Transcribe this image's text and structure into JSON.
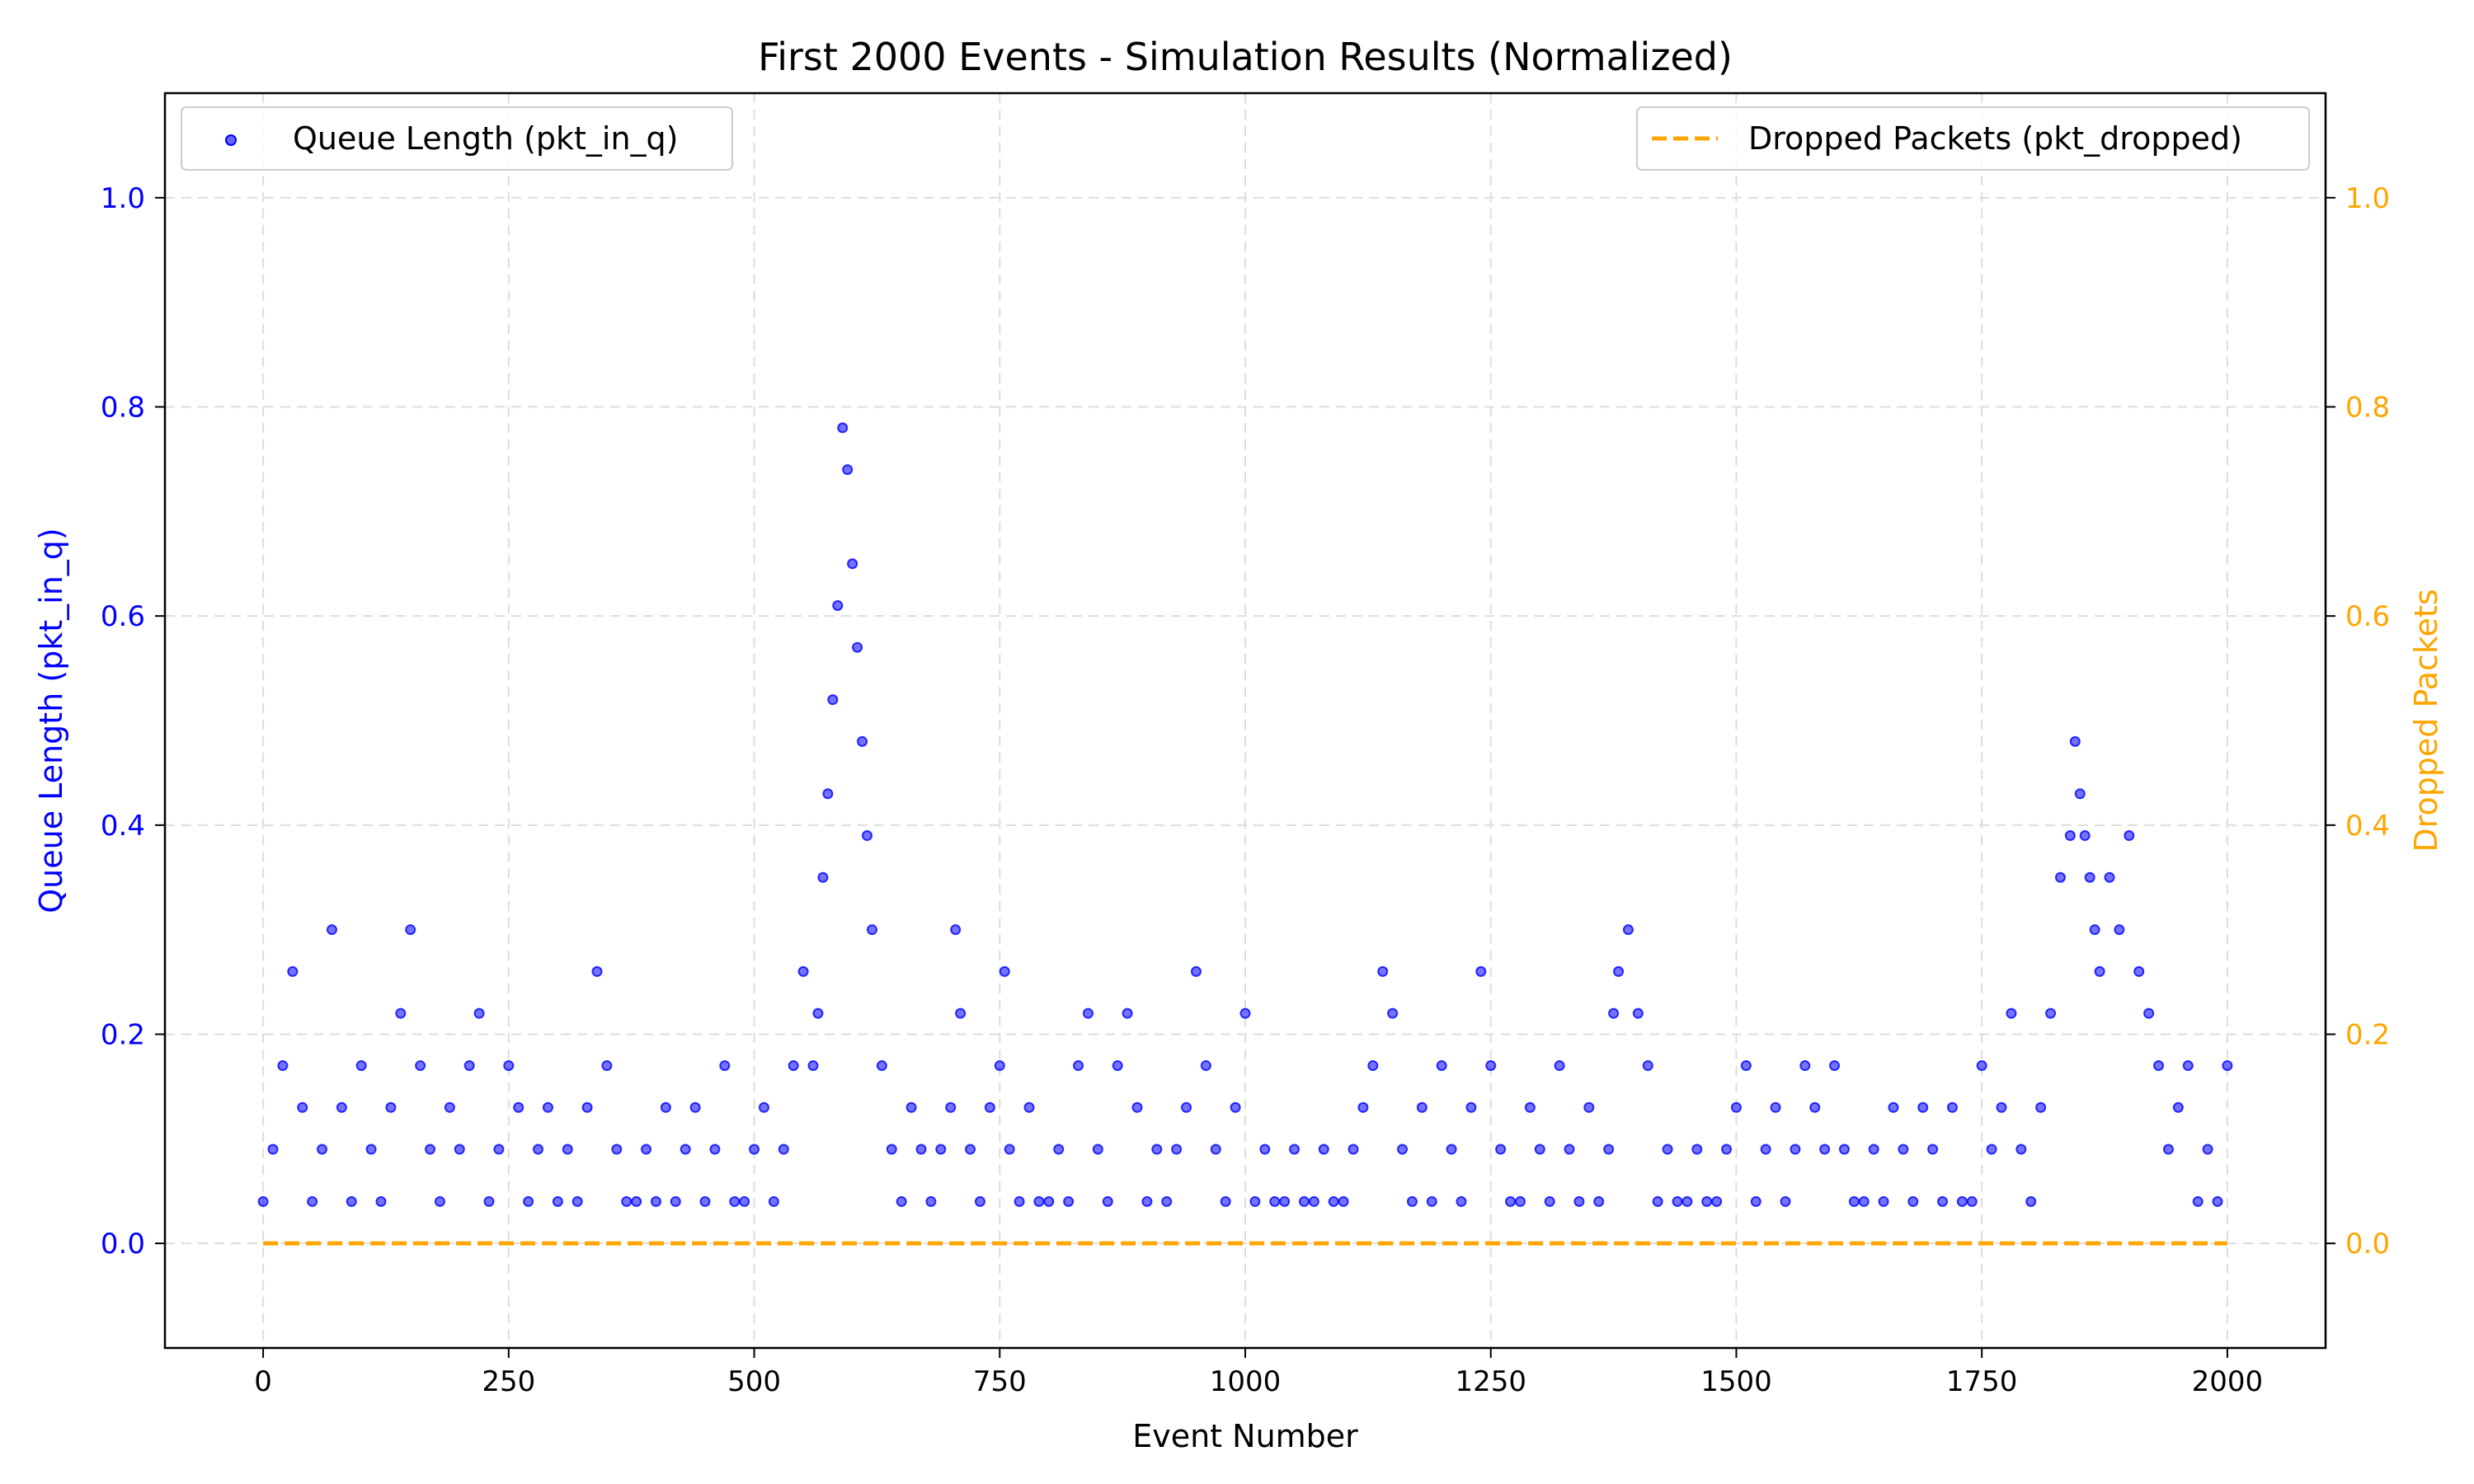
{
  "chart_data": {
    "type": "scatter",
    "title": "First 2000 Events - Simulation Results (Normalized)",
    "xlabel": "Event Number",
    "ylabel": "Queue Length (pkt_in_q)",
    "y2label": "Dropped Packets",
    "xlim": [
      -100,
      2100
    ],
    "ylim": [
      -0.1,
      1.1
    ],
    "y2lim": [
      -0.1,
      1.1
    ],
    "x_ticks": [
      0,
      250,
      500,
      750,
      1000,
      1250,
      1500,
      1750,
      2000
    ],
    "y_ticks": [
      0.0,
      0.2,
      0.4,
      0.6,
      0.8,
      1.0
    ],
    "x_tick_labels": [
      "0",
      "250",
      "500",
      "750",
      "1000",
      "1250",
      "1500",
      "1750",
      "2000"
    ],
    "y_tick_labels": [
      "0.0",
      "0.2",
      "0.4",
      "0.6",
      "0.8",
      "1.0"
    ],
    "y2_tick_labels": [
      "0.0",
      "0.2",
      "0.4",
      "0.6",
      "0.8",
      "1.0"
    ],
    "grid": true,
    "series": [
      {
        "name": "Queue Length (pkt_in_q)",
        "kind": "scatter",
        "axis": "left",
        "color": "#0000ff",
        "x": [
          0,
          10,
          20,
          30,
          40,
          50,
          60,
          70,
          80,
          90,
          100,
          110,
          120,
          130,
          140,
          150,
          160,
          170,
          180,
          190,
          200,
          210,
          220,
          230,
          240,
          250,
          260,
          270,
          280,
          290,
          300,
          310,
          320,
          330,
          340,
          350,
          360,
          370,
          380,
          390,
          400,
          410,
          420,
          430,
          440,
          450,
          460,
          470,
          480,
          490,
          500,
          510,
          520,
          530,
          540,
          550,
          560,
          565,
          570,
          575,
          580,
          585,
          590,
          595,
          600,
          605,
          610,
          615,
          620,
          630,
          640,
          650,
          660,
          670,
          680,
          690,
          700,
          705,
          710,
          720,
          730,
          740,
          750,
          755,
          760,
          770,
          780,
          790,
          800,
          810,
          820,
          830,
          840,
          850,
          860,
          870,
          880,
          890,
          900,
          910,
          920,
          930,
          940,
          950,
          960,
          970,
          980,
          990,
          1000,
          1010,
          1020,
          1030,
          1040,
          1050,
          1060,
          1070,
          1080,
          1090,
          1100,
          1110,
          1120,
          1130,
          1140,
          1150,
          1160,
          1170,
          1180,
          1190,
          1200,
          1210,
          1220,
          1230,
          1240,
          1250,
          1260,
          1270,
          1280,
          1290,
          1300,
          1310,
          1320,
          1330,
          1340,
          1350,
          1360,
          1370,
          1375,
          1380,
          1390,
          1400,
          1410,
          1420,
          1430,
          1440,
          1450,
          1460,
          1470,
          1480,
          1490,
          1500,
          1510,
          1520,
          1530,
          1540,
          1550,
          1560,
          1570,
          1580,
          1590,
          1600,
          1610,
          1620,
          1630,
          1640,
          1650,
          1660,
          1670,
          1680,
          1690,
          1700,
          1710,
          1720,
          1730,
          1740,
          1750,
          1760,
          1770,
          1780,
          1790,
          1800,
          1810,
          1820,
          1830,
          1840,
          1845,
          1850,
          1855,
          1860,
          1865,
          1870,
          1880,
          1890,
          1900,
          1910,
          1920,
          1930,
          1940,
          1950,
          1960,
          1970,
          1980,
          1990,
          2000
        ],
        "y": [
          0.04,
          0.09,
          0.17,
          0.26,
          0.13,
          0.04,
          0.09,
          0.3,
          0.13,
          0.04,
          0.17,
          0.09,
          0.04,
          0.13,
          0.22,
          0.3,
          0.17,
          0.09,
          0.04,
          0.13,
          0.09,
          0.17,
          0.22,
          0.04,
          0.09,
          0.17,
          0.13,
          0.04,
          0.09,
          0.13,
          0.04,
          0.09,
          0.04,
          0.13,
          0.26,
          0.17,
          0.09,
          0.04,
          0.04,
          0.09,
          0.04,
          0.13,
          0.04,
          0.09,
          0.13,
          0.04,
          0.09,
          0.17,
          0.04,
          0.04,
          0.09,
          0.13,
          0.04,
          0.09,
          0.17,
          0.26,
          0.17,
          0.22,
          0.35,
          0.43,
          0.52,
          0.61,
          0.78,
          0.74,
          0.65,
          0.57,
          0.48,
          0.39,
          0.3,
          0.17,
          0.09,
          0.04,
          0.13,
          0.09,
          0.04,
          0.09,
          0.13,
          0.3,
          0.22,
          0.09,
          0.04,
          0.13,
          0.17,
          0.26,
          0.09,
          0.04,
          0.13,
          0.04,
          0.04,
          0.09,
          0.04,
          0.17,
          0.22,
          0.09,
          0.04,
          0.17,
          0.22,
          0.13,
          0.04,
          0.09,
          0.04,
          0.09,
          0.13,
          0.26,
          0.17,
          0.09,
          0.04,
          0.13,
          0.22,
          0.04,
          0.09,
          0.04,
          0.04,
          0.09,
          0.04,
          0.04,
          0.09,
          0.04,
          0.04,
          0.09,
          0.13,
          0.17,
          0.26,
          0.22,
          0.09,
          0.04,
          0.13,
          0.04,
          0.17,
          0.09,
          0.04,
          0.13,
          0.26,
          0.17,
          0.09,
          0.04,
          0.04,
          0.13,
          0.09,
          0.04,
          0.17,
          0.09,
          0.04,
          0.13,
          0.04,
          0.09,
          0.22,
          0.26,
          0.3,
          0.22,
          0.17,
          0.04,
          0.09,
          0.04,
          0.04,
          0.09,
          0.04,
          0.04,
          0.09,
          0.13,
          0.17,
          0.04,
          0.09,
          0.13,
          0.04,
          0.09,
          0.17,
          0.13,
          0.09,
          0.17,
          0.09,
          0.04,
          0.04,
          0.09,
          0.04,
          0.13,
          0.09,
          0.04,
          0.13,
          0.09,
          0.04,
          0.13,
          0.04,
          0.04,
          0.17,
          0.09,
          0.13,
          0.22,
          0.09,
          0.04,
          0.13,
          0.22,
          0.35,
          0.39,
          0.48,
          0.43,
          0.39,
          0.35,
          0.3,
          0.26,
          0.35,
          0.3,
          0.39,
          0.26,
          0.22,
          0.17,
          0.09,
          0.13,
          0.17,
          0.04,
          0.09,
          0.04,
          0.17
        ]
      },
      {
        "name": "Dropped Packets (pkt_dropped)",
        "kind": "line",
        "style": "dashed",
        "axis": "right",
        "color": "#ffa500",
        "x": [
          0,
          2000
        ],
        "y": [
          0.0,
          0.0
        ]
      }
    ],
    "legend": [
      {
        "position": "top-left",
        "label": "Queue Length (pkt_in_q)"
      },
      {
        "position": "top-right",
        "label": "Dropped Packets (pkt_dropped)"
      }
    ],
    "left_axis_color": "#0000ff",
    "right_axis_color": "#ffa500"
  }
}
